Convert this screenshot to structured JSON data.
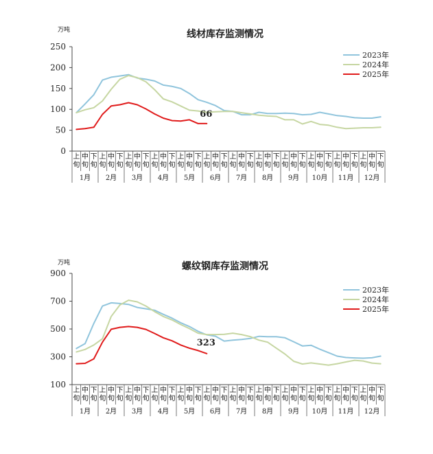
{
  "chart_data": [
    {
      "type": "line",
      "title": "线材库存监测情况",
      "unit": "万吨",
      "ylim": [
        0,
        250
      ],
      "yticks": [
        0,
        50,
        100,
        150,
        200,
        250
      ],
      "x_sub_labels": [
        "上旬",
        "中旬",
        "下旬"
      ],
      "x_month_labels": [
        "1月",
        "2月",
        "3月",
        "4月",
        "5月",
        "6月",
        "7月",
        "8月",
        "9月",
        "10月",
        "11月",
        "12月"
      ],
      "legend_position": "top-right",
      "annotation": {
        "text": "66",
        "index": 15,
        "value": 66
      },
      "series": [
        {
          "name": "2023年",
          "color": "#8fc4dc",
          "values": [
            92,
            113,
            135,
            170,
            177,
            180,
            183,
            175,
            172,
            168,
            158,
            155,
            150,
            138,
            123,
            117,
            109,
            97,
            95,
            87,
            87,
            93,
            90,
            90,
            91,
            90,
            87,
            88,
            93,
            89,
            85,
            83,
            80,
            79,
            79,
            82
          ]
        },
        {
          "name": "2024年",
          "color": "#c6d6a2",
          "values": [
            92,
            99,
            104,
            120,
            148,
            172,
            181,
            176,
            166,
            147,
            125,
            118,
            108,
            98,
            96,
            93,
            94,
            95,
            95,
            92,
            89,
            86,
            84,
            83,
            75,
            75,
            65,
            71,
            64,
            62,
            57,
            54,
            55,
            56,
            56,
            57
          ]
        },
        {
          "name": "2025年",
          "color": "#e01a1a",
          "values": [
            52,
            54,
            57,
            88,
            108,
            111,
            116,
            111,
            101,
            89,
            79,
            73,
            72,
            75,
            66,
            66
          ]
        }
      ]
    },
    {
      "type": "line",
      "title": "螺纹钢库存监测情况",
      "unit": "万吨",
      "ylim": [
        100,
        900
      ],
      "yticks": [
        100,
        300,
        500,
        700,
        900
      ],
      "x_sub_labels": [
        "上旬",
        "中旬",
        "下旬"
      ],
      "x_month_labels": [
        "1月",
        "2月",
        "3月",
        "4月",
        "5月",
        "6月",
        "7月",
        "8月",
        "9月",
        "10月",
        "11月",
        "12月"
      ],
      "legend_position": "top-right",
      "annotation": {
        "text": "323",
        "index": 15,
        "value": 323
      },
      "series": [
        {
          "name": "2023年",
          "color": "#8fc4dc",
          "values": [
            360,
            395,
            540,
            665,
            688,
            683,
            677,
            655,
            645,
            635,
            605,
            578,
            545,
            518,
            483,
            458,
            448,
            413,
            420,
            425,
            432,
            447,
            444,
            444,
            437,
            408,
            378,
            383,
            355,
            330,
            305,
            295,
            292,
            290,
            293,
            305
          ]
        },
        {
          "name": "2024年",
          "color": "#c6d6a2",
          "values": [
            335,
            353,
            385,
            430,
            590,
            673,
            707,
            695,
            665,
            625,
            590,
            565,
            532,
            503,
            470,
            460,
            460,
            462,
            470,
            460,
            445,
            420,
            405,
            362,
            320,
            268,
            248,
            256,
            248,
            240,
            250,
            263,
            275,
            270,
            255,
            250
          ]
        },
        {
          "name": "2025年",
          "color": "#e01a1a",
          "values": [
            250,
            253,
            285,
            405,
            498,
            512,
            518,
            512,
            497,
            468,
            437,
            415,
            385,
            362,
            345,
            323
          ]
        }
      ]
    }
  ]
}
